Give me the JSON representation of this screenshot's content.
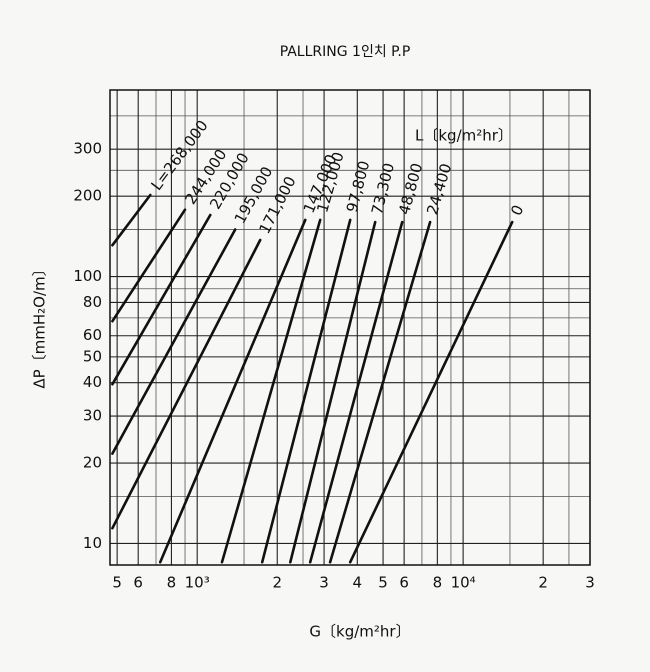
{
  "chart_data": {
    "type": "line",
    "title": "PALLRING 1인치 P.P",
    "xlabel": "G〔kg/m²hr〕",
    "ylabel": "ΔP〔mmH₂O/m〕",
    "annotation": "L〔kg/m²hr〕",
    "xlog": true,
    "ylog": true,
    "grid": true,
    "color": "#111111",
    "xlim": [
      470,
      30000
    ],
    "ylim": [
      8.3,
      500
    ],
    "xticks": [
      {
        "value": 500,
        "label": "5"
      },
      {
        "value": 600,
        "label": "6"
      },
      {
        "value": 800,
        "label": "8"
      },
      {
        "value": 1000,
        "label": "10³"
      },
      {
        "value": 2000,
        "label": "2"
      },
      {
        "value": 3000,
        "label": "3"
      },
      {
        "value": 4000,
        "label": "4"
      },
      {
        "value": 5000,
        "label": "5"
      },
      {
        "value": 6000,
        "label": "6"
      },
      {
        "value": 8000,
        "label": "8"
      },
      {
        "value": 10000,
        "label": "10⁴"
      },
      {
        "value": 20000,
        "label": "2"
      },
      {
        "value": 30000,
        "label": "3"
      }
    ],
    "yticks": [
      10,
      20,
      30,
      40,
      50,
      60,
      80,
      100,
      200,
      300
    ],
    "xminor": [
      700,
      900,
      1500,
      2500,
      7000,
      9000,
      15000,
      25000
    ],
    "yminor": [
      15,
      70,
      90,
      150,
      250,
      400
    ],
    "series": [
      {
        "name": "L=268,000",
        "x": [
          480,
          666
        ],
        "values": [
          131,
          202
        ]
      },
      {
        "name": "244,000",
        "x": [
          480,
          900
        ],
        "values": [
          68,
          178
        ]
      },
      {
        "name": "220,000",
        "x": [
          480,
          1120
        ],
        "values": [
          39.5,
          170
        ]
      },
      {
        "name": "195,000",
        "x": [
          480,
          1390
        ],
        "values": [
          21.7,
          150
        ]
      },
      {
        "name": "171,000",
        "x": [
          480,
          1725
        ],
        "values": [
          11.4,
          137
        ]
      },
      {
        "name": "147,000",
        "x": [
          726,
          2550
        ],
        "values": [
          8.5,
          163
        ]
      },
      {
        "name": "122,000",
        "x": [
          1240,
          2900
        ],
        "values": [
          8.5,
          163
        ]
      },
      {
        "name": "97,800",
        "x": [
          1755,
          3760
        ],
        "values": [
          8.5,
          163
        ]
      },
      {
        "name": "73,300",
        "x": [
          2240,
          4670
        ],
        "values": [
          8.5,
          160
        ]
      },
      {
        "name": "48,800",
        "x": [
          2660,
          5900
        ],
        "values": [
          8.5,
          160
        ]
      },
      {
        "name": "24,400",
        "x": [
          3160,
          7510
        ],
        "values": [
          8.5,
          160
        ]
      },
      {
        "name": "0",
        "x": [
          3760,
          15300
        ],
        "values": [
          8.5,
          160
        ]
      }
    ]
  }
}
